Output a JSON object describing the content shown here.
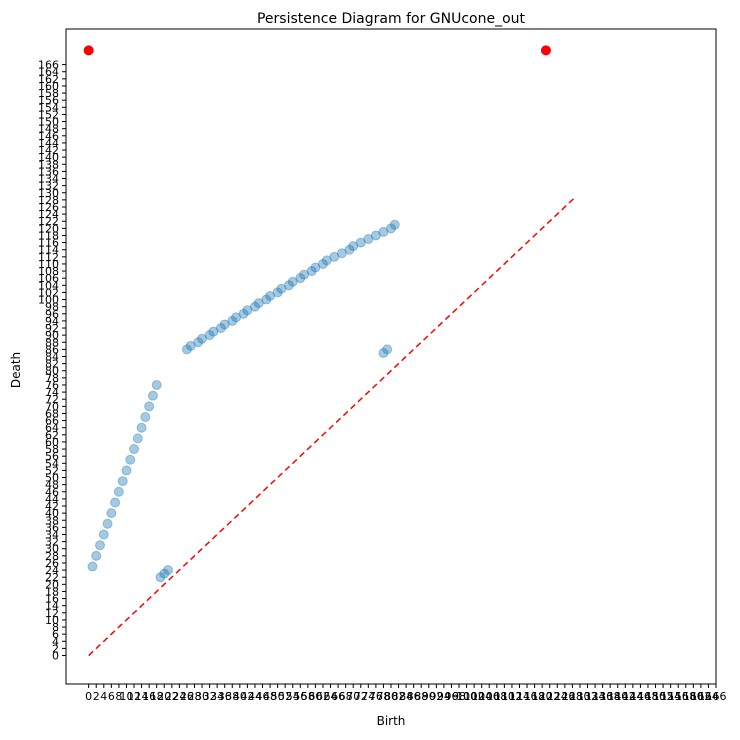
{
  "chart_data": {
    "type": "scatter",
    "title": "Persistence Diagram for GNUcone_out",
    "xlabel": "Birth",
    "ylabel": "Death",
    "xlim": [
      -6,
      166
    ],
    "ylim": [
      -8,
      176
    ],
    "x_ticks": [
      0,
      2,
      4,
      6,
      8,
      10,
      12,
      14,
      16,
      18,
      20,
      22,
      24,
      26,
      28,
      30,
      32,
      34,
      36,
      38,
      40,
      42,
      44,
      46,
      48,
      50,
      52,
      54,
      56,
      58,
      60,
      62,
      64,
      66,
      68,
      70,
      72,
      74,
      76,
      78,
      80,
      82,
      84,
      86,
      88,
      90,
      92,
      94,
      96,
      98,
      100,
      102,
      104,
      106,
      108,
      110,
      112,
      114,
      116,
      118,
      120,
      122,
      124,
      126,
      128,
      130,
      132,
      134,
      136,
      138,
      140,
      142,
      144,
      146,
      148,
      150,
      152,
      154,
      156,
      158,
      160,
      162,
      164,
      166
    ],
    "y_ticks": [
      0,
      2,
      4,
      6,
      8,
      10,
      12,
      14,
      16,
      18,
      20,
      22,
      24,
      26,
      28,
      30,
      32,
      34,
      36,
      38,
      40,
      42,
      44,
      46,
      48,
      50,
      52,
      54,
      56,
      58,
      60,
      62,
      64,
      66,
      68,
      70,
      72,
      74,
      76,
      78,
      80,
      82,
      84,
      86,
      88,
      90,
      92,
      94,
      96,
      98,
      100,
      102,
      104,
      106,
      108,
      110,
      112,
      114,
      116,
      118,
      120,
      122,
      124,
      126,
      128,
      130,
      132,
      134,
      136,
      138,
      140,
      142,
      144,
      146,
      148,
      150,
      152,
      154,
      156,
      158,
      160,
      162,
      164,
      166
    ],
    "grid": false,
    "diagonal": {
      "from": [
        0,
        0
      ],
      "to": [
        129,
        129
      ],
      "color": "#ff0000",
      "style": "dashed"
    },
    "series": [
      {
        "color": "#1f77b4",
        "alpha": 0.4,
        "points": [
          [
            1,
            25
          ],
          [
            2,
            28
          ],
          [
            3,
            31
          ],
          [
            4,
            34
          ],
          [
            5,
            37
          ],
          [
            6,
            40
          ],
          [
            7,
            43
          ],
          [
            8,
            46
          ],
          [
            9,
            49
          ],
          [
            10,
            52
          ],
          [
            11,
            55
          ],
          [
            12,
            58
          ],
          [
            13,
            61
          ],
          [
            14,
            64
          ],
          [
            15,
            67
          ],
          [
            16,
            70
          ],
          [
            17,
            73
          ],
          [
            18,
            76
          ],
          [
            19,
            22
          ],
          [
            20,
            23
          ],
          [
            21,
            24
          ],
          [
            26,
            86
          ],
          [
            27,
            87
          ],
          [
            29,
            88
          ],
          [
            30,
            89
          ],
          [
            32,
            90
          ],
          [
            33,
            91
          ],
          [
            35,
            92
          ],
          [
            36,
            93
          ],
          [
            38,
            94
          ],
          [
            39,
            95
          ],
          [
            41,
            96
          ],
          [
            42,
            97
          ],
          [
            44,
            98
          ],
          [
            45,
            99
          ],
          [
            47,
            100
          ],
          [
            48,
            101
          ],
          [
            50,
            102
          ],
          [
            51,
            103
          ],
          [
            53,
            104
          ],
          [
            54,
            105
          ],
          [
            56,
            106
          ],
          [
            57,
            107
          ],
          [
            59,
            108
          ],
          [
            60,
            109
          ],
          [
            62,
            110
          ],
          [
            63,
            111
          ],
          [
            65,
            112
          ],
          [
            67,
            113
          ],
          [
            69,
            114
          ],
          [
            70,
            115
          ],
          [
            72,
            116
          ],
          [
            74,
            117
          ],
          [
            76,
            118
          ],
          [
            78,
            119
          ],
          [
            80,
            120
          ],
          [
            81,
            121
          ],
          [
            78,
            85
          ],
          [
            79,
            86
          ]
        ]
      },
      {
        "color": "#ff0000",
        "alpha": 1,
        "points": [
          [
            0,
            170
          ],
          [
            121,
            170
          ]
        ]
      }
    ]
  }
}
